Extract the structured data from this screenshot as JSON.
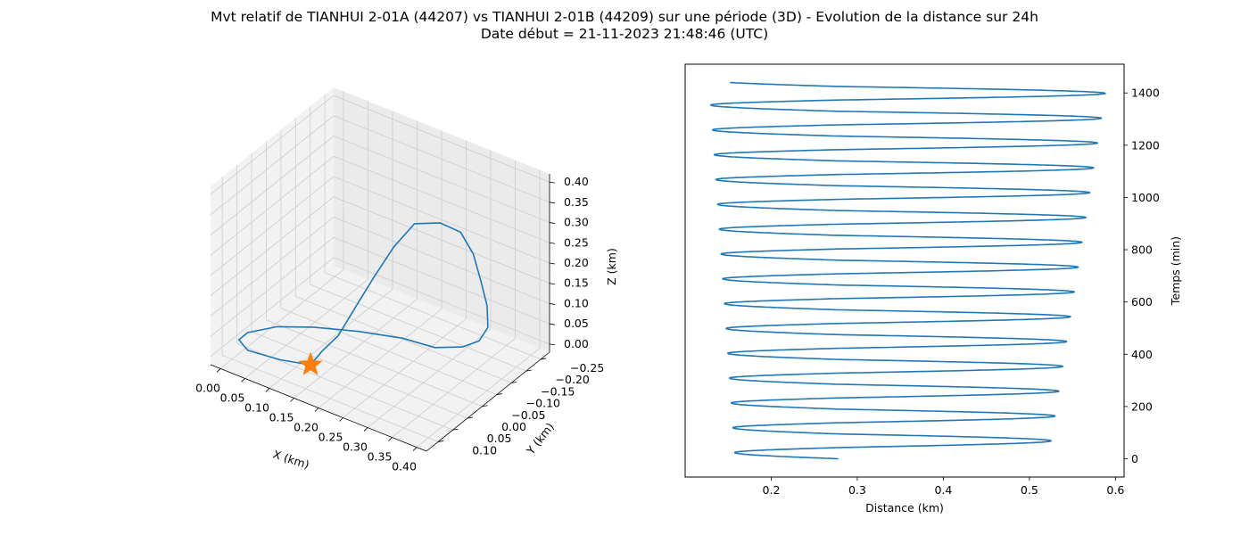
{
  "title_line1": "Mvt relatif de TIANHUI 2-01A (44207) vs TIANHUI 2-01B (44209) sur une période (3D) - Evolution de la distance sur 24h",
  "title_line2": "Date début = 21-11-2023 21:48:46 (UTC)",
  "colors": {
    "series": "#1f77b4",
    "marker": "#ff7f0e",
    "pane": "#f2f2f2",
    "grid": "#cccccc"
  },
  "chart_data": [
    {
      "type": "line3d",
      "xlabel": "X (km)",
      "ylabel": "Y (km)",
      "zlabel": "Z (km)",
      "xticks": [
        "0.00",
        "0.05",
        "0.10",
        "0.15",
        "0.20",
        "0.25",
        "0.30",
        "0.35",
        "0.40"
      ],
      "yticks": [
        "−0.25",
        "−0.20",
        "−0.15",
        "−0.10",
        "−0.05",
        "0.00",
        "0.05",
        "0.10"
      ],
      "zticks": [
        "0.00",
        "0.05",
        "0.10",
        "0.15",
        "0.20",
        "0.25",
        "0.30",
        "0.35",
        "0.40"
      ],
      "xlim": [
        -0.02,
        0.42
      ],
      "ylim": [
        -0.28,
        0.14
      ],
      "zlim": [
        -0.02,
        0.42
      ],
      "grid": true,
      "marker": {
        "shape": "star",
        "point": [
          0.13,
          0.05,
          0.0
        ]
      },
      "points": [
        [
          0.13,
          0.05,
          0.0
        ],
        [
          0.08,
          0.07,
          0.0
        ],
        [
          0.02,
          0.08,
          0.0
        ],
        [
          -0.01,
          0.06,
          0.0
        ],
        [
          -0.01,
          0.03,
          0.0
        ],
        [
          0.02,
          -0.02,
          0.0
        ],
        [
          0.07,
          -0.06,
          0.0
        ],
        [
          0.14,
          -0.1,
          0.0
        ],
        [
          0.21,
          -0.13,
          0.0
        ],
        [
          0.27,
          -0.14,
          0.0
        ],
        [
          0.32,
          -0.15,
          0.02
        ],
        [
          0.36,
          -0.14,
          0.06
        ],
        [
          0.39,
          -0.12,
          0.12
        ],
        [
          0.4,
          -0.1,
          0.19
        ],
        [
          0.4,
          -0.08,
          0.26
        ],
        [
          0.39,
          -0.07,
          0.33
        ],
        [
          0.37,
          -0.06,
          0.38
        ],
        [
          0.34,
          -0.04,
          0.4
        ],
        [
          0.3,
          -0.02,
          0.39
        ],
        [
          0.27,
          0.0,
          0.33
        ],
        [
          0.24,
          0.02,
          0.25
        ],
        [
          0.21,
          0.03,
          0.17
        ],
        [
          0.18,
          0.04,
          0.09
        ],
        [
          0.15,
          0.045,
          0.04
        ],
        [
          0.13,
          0.05,
          0.0
        ]
      ]
    },
    {
      "type": "line",
      "xlabel": "Distance (km)",
      "ylabel": "Temps (min)",
      "y_axis_side": "right",
      "xlim": [
        0.1,
        0.61
      ],
      "ylim": [
        -70,
        1510
      ],
      "xticks": [
        "0.2",
        "0.3",
        "0.4",
        "0.5",
        "0.6"
      ],
      "yticks": [
        "0",
        "200",
        "400",
        "600",
        "800",
        "1000",
        "1200",
        "1400"
      ],
      "grid": false,
      "series": [
        {
          "oscillation": {
            "period_min": 95.0,
            "t_start": 0,
            "t_end": 1440,
            "max_distance_start": 0.522,
            "max_distance_end": 0.59,
            "min_distance_start": 0.158,
            "min_distance_end": 0.128,
            "shoulder_distance_start": 0.278,
            "shoulder_distance_end": 0.275
          }
        }
      ]
    }
  ]
}
